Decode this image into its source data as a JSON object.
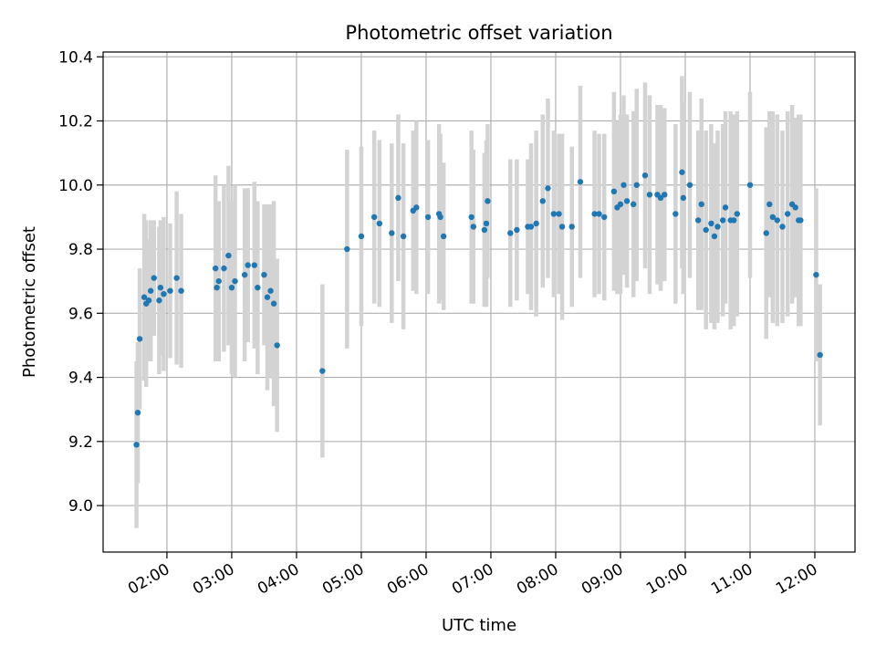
{
  "chart_data": {
    "type": "scatter",
    "title": "Photometric offset variation",
    "xlabel": "UTC time",
    "ylabel": "Photometric offset",
    "x_unit": "hours",
    "x_ticks": [
      {
        "value": 2,
        "label": "02:00"
      },
      {
        "value": 3,
        "label": "03:00"
      },
      {
        "value": 4,
        "label": "04:00"
      },
      {
        "value": 5,
        "label": "05:00"
      },
      {
        "value": 6,
        "label": "06:00"
      },
      {
        "value": 7,
        "label": "07:00"
      },
      {
        "value": 8,
        "label": "08:00"
      },
      {
        "value": 9,
        "label": "09:00"
      },
      {
        "value": 10,
        "label": "10:00"
      },
      {
        "value": 11,
        "label": "11:00"
      },
      {
        "value": 12,
        "label": "12:00"
      }
    ],
    "y_ticks": [
      "9.0",
      "9.2",
      "9.4",
      "9.6",
      "9.8",
      "10.0",
      "10.2",
      "10.4"
    ],
    "xlim": [
      1.015,
      12.62
    ],
    "ylim": [
      8.855,
      10.415
    ],
    "grid": true,
    "marker_color": "#1f77b4",
    "errorbar_color": "#d3d3d3",
    "points": [
      [
        1.53,
        9.19,
        0.26
      ],
      [
        1.55,
        9.29,
        0.22
      ],
      [
        1.58,
        9.52,
        0.22
      ],
      [
        1.65,
        9.65,
        0.26
      ],
      [
        1.68,
        9.63,
        0.26
      ],
      [
        1.72,
        9.64,
        0.19
      ],
      [
        1.75,
        9.67,
        0.22
      ],
      [
        1.8,
        9.71,
        0.18
      ],
      [
        1.88,
        9.64,
        0.23
      ],
      [
        1.9,
        9.68,
        0.21
      ],
      [
        1.95,
        9.66,
        0.24
      ],
      [
        2.05,
        9.67,
        0.21
      ],
      [
        2.15,
        9.71,
        0.27
      ],
      [
        2.22,
        9.67,
        0.24
      ],
      [
        2.75,
        9.74,
        0.29
      ],
      [
        2.77,
        9.68,
        0.23
      ],
      [
        2.8,
        9.7,
        0.25
      ],
      [
        2.88,
        9.74,
        0.26
      ],
      [
        2.95,
        9.78,
        0.28
      ],
      [
        3.0,
        9.68,
        0.27
      ],
      [
        3.05,
        9.7,
        0.3
      ],
      [
        3.2,
        9.72,
        0.27
      ],
      [
        3.25,
        9.75,
        0.24
      ],
      [
        3.35,
        9.75,
        0.26
      ],
      [
        3.4,
        9.68,
        0.27
      ],
      [
        3.5,
        9.72,
        0.22
      ],
      [
        3.55,
        9.65,
        0.29
      ],
      [
        3.6,
        9.67,
        0.27
      ],
      [
        3.65,
        9.63,
        0.32
      ],
      [
        3.7,
        9.5,
        0.27
      ],
      [
        4.4,
        9.42,
        0.27
      ],
      [
        4.78,
        9.8,
        0.31
      ],
      [
        5.0,
        9.84,
        0.28
      ],
      [
        5.2,
        9.9,
        0.27
      ],
      [
        5.28,
        9.88,
        0.26
      ],
      [
        5.47,
        9.85,
        0.28
      ],
      [
        5.57,
        9.96,
        0.26
      ],
      [
        5.65,
        9.84,
        0.29
      ],
      [
        5.8,
        9.92,
        0.25
      ],
      [
        5.85,
        9.93,
        0.27
      ],
      [
        6.03,
        9.9,
        0.24
      ],
      [
        6.2,
        9.91,
        0.28
      ],
      [
        6.22,
        9.9,
        0.26
      ],
      [
        6.27,
        9.84,
        0.23
      ],
      [
        6.7,
        9.9,
        0.27
      ],
      [
        6.73,
        9.87,
        0.24
      ],
      [
        6.9,
        9.86,
        0.24
      ],
      [
        6.93,
        9.88,
        0.26
      ],
      [
        6.95,
        9.95,
        0.24
      ],
      [
        7.3,
        9.85,
        0.23
      ],
      [
        7.4,
        9.86,
        0.22
      ],
      [
        7.57,
        9.87,
        0.21
      ],
      [
        7.62,
        9.87,
        0.26
      ],
      [
        7.7,
        9.88,
        0.29
      ],
      [
        7.8,
        9.95,
        0.27
      ],
      [
        7.88,
        9.99,
        0.28
      ],
      [
        7.97,
        9.91,
        0.26
      ],
      [
        8.05,
        9.91,
        0.25
      ],
      [
        8.1,
        9.87,
        0.29
      ],
      [
        8.25,
        9.87,
        0.25
      ],
      [
        8.38,
        10.01,
        0.3
      ],
      [
        8.6,
        9.91,
        0.26
      ],
      [
        8.67,
        9.91,
        0.25
      ],
      [
        8.75,
        9.9,
        0.26
      ],
      [
        8.9,
        9.98,
        0.31
      ],
      [
        8.95,
        9.93,
        0.27
      ],
      [
        9.0,
        9.94,
        0.28
      ],
      [
        9.05,
        10.0,
        0.28
      ],
      [
        9.1,
        9.95,
        0.27
      ],
      [
        9.2,
        9.94,
        0.29
      ],
      [
        9.25,
        10.0,
        0.3
      ],
      [
        9.38,
        10.03,
        0.29
      ],
      [
        9.45,
        9.97,
        0.31
      ],
      [
        9.57,
        9.97,
        0.28
      ],
      [
        9.62,
        9.96,
        0.29
      ],
      [
        9.68,
        9.97,
        0.27
      ],
      [
        9.85,
        9.91,
        0.28
      ],
      [
        9.95,
        10.04,
        0.3
      ],
      [
        9.97,
        9.96,
        0.3
      ],
      [
        10.07,
        10.0,
        0.29
      ],
      [
        10.2,
        9.89,
        0.28
      ],
      [
        10.25,
        9.94,
        0.33
      ],
      [
        10.32,
        9.86,
        0.31
      ],
      [
        10.4,
        9.88,
        0.31
      ],
      [
        10.45,
        9.84,
        0.29
      ],
      [
        10.5,
        9.87,
        0.3
      ],
      [
        10.58,
        9.89,
        0.3
      ],
      [
        10.62,
        9.93,
        0.3
      ],
      [
        10.7,
        9.89,
        0.34
      ],
      [
        10.75,
        9.89,
        0.33
      ],
      [
        10.8,
        9.91,
        0.32
      ],
      [
        11.0,
        10.0,
        0.29
      ],
      [
        11.25,
        9.85,
        0.33
      ],
      [
        11.3,
        9.94,
        0.29
      ],
      [
        11.35,
        9.9,
        0.33
      ],
      [
        11.42,
        9.89,
        0.33
      ],
      [
        11.5,
        9.87,
        0.3
      ],
      [
        11.58,
        9.91,
        0.32
      ],
      [
        11.65,
        9.94,
        0.31
      ],
      [
        11.7,
        9.93,
        0.28
      ],
      [
        11.75,
        9.89,
        0.33
      ],
      [
        11.78,
        9.89,
        0.33
      ],
      [
        12.02,
        9.72,
        0.27
      ],
      [
        12.08,
        9.47,
        0.22
      ]
    ]
  }
}
